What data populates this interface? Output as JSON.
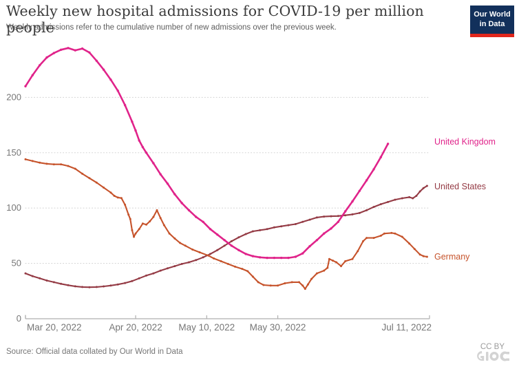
{
  "logo": {
    "line1": "Our World",
    "line2": "in Data",
    "bg_color": "#12305b",
    "accent_color": "#e0261c"
  },
  "footer": {
    "source": "Source: Official data collated by Our World in Data",
    "license": "CC BY"
  },
  "chart_data": {
    "type": "line",
    "title": "Weekly new hospital admissions for COVID-19 per million people",
    "subtitle": "Weekly admissions refer to the cumulative number of new admissions over the previous week.",
    "x_unit": "date (days since Mar 20, 2022)",
    "xlim_days": [
      0,
      113
    ],
    "ylim": [
      0,
      250
    ],
    "grid": "dotted-horizontal",
    "legend_position": "right-of-line-end",
    "x_ticks": [
      {
        "day": 0,
        "label": "Mar 20, 2022"
      },
      {
        "day": 31,
        "label": "Apr 20, 2022"
      },
      {
        "day": 51,
        "label": "May 10, 2022"
      },
      {
        "day": 71,
        "label": "May 30, 2022"
      },
      {
        "day": 113,
        "label": "Jul 11, 2022"
      }
    ],
    "y_ticks": [
      0,
      50,
      100,
      150,
      200
    ],
    "series": [
      {
        "name": "United States",
        "slug": "united-states",
        "color": "#943a44",
        "width": 2.1,
        "dot": 1.5,
        "label_dy": 3,
        "points": [
          [
            0,
            41
          ],
          [
            2,
            38.5
          ],
          [
            4,
            36.5
          ],
          [
            6,
            34.5
          ],
          [
            8,
            33
          ],
          [
            10,
            31.5
          ],
          [
            12,
            30.3
          ],
          [
            14,
            29.3
          ],
          [
            16,
            28.7
          ],
          [
            18,
            28.5
          ],
          [
            20,
            28.7
          ],
          [
            22,
            29.2
          ],
          [
            24,
            30
          ],
          [
            26,
            31
          ],
          [
            28,
            32.3
          ],
          [
            30,
            34
          ],
          [
            32,
            36.5
          ],
          [
            34,
            39
          ],
          [
            36,
            41
          ],
          [
            38,
            43.5
          ],
          [
            40,
            45.5
          ],
          [
            42,
            47.5
          ],
          [
            44,
            49.5
          ],
          [
            46,
            51
          ],
          [
            48,
            53
          ],
          [
            50,
            55.5
          ],
          [
            52,
            58.5
          ],
          [
            54,
            62
          ],
          [
            56,
            66
          ],
          [
            58,
            70
          ],
          [
            60,
            73.5
          ],
          [
            62,
            76.5
          ],
          [
            64,
            79
          ],
          [
            66,
            80
          ],
          [
            68,
            81
          ],
          [
            70,
            82.5
          ],
          [
            72,
            83.5
          ],
          [
            74,
            84.5
          ],
          [
            76,
            85.5
          ],
          [
            78,
            87.5
          ],
          [
            80,
            89.5
          ],
          [
            82,
            91.5
          ],
          [
            84,
            92.3
          ],
          [
            86,
            92.6
          ],
          [
            88,
            92.8
          ],
          [
            90,
            93.5
          ],
          [
            92,
            94.3
          ],
          [
            94,
            95.5
          ],
          [
            96,
            98
          ],
          [
            98,
            101
          ],
          [
            100,
            103.5
          ],
          [
            102,
            105.5
          ],
          [
            104,
            107.5
          ],
          [
            106,
            108.8
          ],
          [
            108,
            109.8
          ],
          [
            109,
            108.8
          ],
          [
            110,
            111
          ],
          [
            111,
            115
          ],
          [
            112,
            118
          ],
          [
            113,
            120
          ]
        ]
      },
      {
        "name": "Germany",
        "slug": "germany",
        "color": "#c6532b",
        "width": 2.1,
        "dot": 1.5,
        "label_dy": 2,
        "points": [
          [
            0,
            144
          ],
          [
            2,
            142.5
          ],
          [
            4,
            141
          ],
          [
            6,
            140
          ],
          [
            8,
            139.5
          ],
          [
            10,
            139.5
          ],
          [
            12,
            138
          ],
          [
            14,
            135.5
          ],
          [
            16,
            131
          ],
          [
            18,
            127
          ],
          [
            20,
            123
          ],
          [
            22,
            118.5
          ],
          [
            24,
            114
          ],
          [
            25,
            111
          ],
          [
            26,
            109.5
          ],
          [
            27,
            109
          ],
          [
            28,
            103
          ],
          [
            29,
            94
          ],
          [
            29.5,
            90
          ],
          [
            30,
            80
          ],
          [
            30.5,
            74
          ],
          [
            31,
            77
          ],
          [
            32,
            81
          ],
          [
            33,
            86
          ],
          [
            34,
            85
          ],
          [
            35,
            88
          ],
          [
            36,
            92
          ],
          [
            37,
            98
          ],
          [
            38,
            91
          ],
          [
            39,
            84.5
          ],
          [
            40.5,
            77
          ],
          [
            42,
            72.5
          ],
          [
            43.5,
            68.5
          ],
          [
            45,
            66
          ],
          [
            47,
            62.5
          ],
          [
            49,
            60
          ],
          [
            51.5,
            57
          ],
          [
            53,
            54.5
          ],
          [
            55,
            52
          ],
          [
            57,
            49.5
          ],
          [
            59,
            47
          ],
          [
            61,
            45
          ],
          [
            62.5,
            43
          ],
          [
            64,
            38
          ],
          [
            65.5,
            33
          ],
          [
            67,
            30.5
          ],
          [
            69,
            30
          ],
          [
            71,
            30
          ],
          [
            73,
            32
          ],
          [
            75,
            33
          ],
          [
            77,
            33
          ],
          [
            78,
            30
          ],
          [
            78.7,
            27
          ],
          [
            79.5,
            31
          ],
          [
            80.5,
            36
          ],
          [
            82,
            41
          ],
          [
            84,
            43.5
          ],
          [
            85,
            46
          ],
          [
            85.5,
            54
          ],
          [
            86.5,
            52.5
          ],
          [
            87.5,
            51
          ],
          [
            88.8,
            47.5
          ],
          [
            90,
            52
          ],
          [
            92,
            54
          ],
          [
            93.5,
            61
          ],
          [
            95,
            70
          ],
          [
            96,
            73
          ],
          [
            98,
            73
          ],
          [
            100,
            75
          ],
          [
            101,
            77
          ],
          [
            103,
            77.5
          ],
          [
            104,
            77
          ],
          [
            106,
            74
          ],
          [
            108,
            68
          ],
          [
            109.5,
            63
          ],
          [
            111,
            58
          ],
          [
            112,
            56.5
          ],
          [
            113,
            56
          ]
        ]
      },
      {
        "name": "United Kingdom",
        "slug": "united-kingdom",
        "color": "#e0238a",
        "width": 2.6,
        "dot": 1.7,
        "label_dy": -1,
        "points": [
          [
            0,
            210
          ],
          [
            2,
            220
          ],
          [
            4,
            229
          ],
          [
            6,
            236
          ],
          [
            8,
            240
          ],
          [
            10,
            243
          ],
          [
            12,
            244.5
          ],
          [
            14,
            242.5
          ],
          [
            16,
            244
          ],
          [
            18,
            240.5
          ],
          [
            20,
            233
          ],
          [
            22,
            225
          ],
          [
            24,
            216
          ],
          [
            26,
            206
          ],
          [
            28,
            193
          ],
          [
            30,
            178
          ],
          [
            31,
            170
          ],
          [
            32,
            161
          ],
          [
            33,
            155
          ],
          [
            34,
            150
          ],
          [
            36,
            140.5
          ],
          [
            38,
            130.5
          ],
          [
            40,
            122
          ],
          [
            42,
            112.5
          ],
          [
            44,
            104.5
          ],
          [
            46,
            98
          ],
          [
            48,
            92
          ],
          [
            50,
            87.5
          ],
          [
            52,
            81
          ],
          [
            54,
            76
          ],
          [
            56,
            71
          ],
          [
            58,
            66
          ],
          [
            60,
            62
          ],
          [
            62,
            58.5
          ],
          [
            64,
            56.5
          ],
          [
            66,
            55.5
          ],
          [
            68,
            55
          ],
          [
            70,
            55
          ],
          [
            72,
            55
          ],
          [
            74,
            55
          ],
          [
            76,
            56
          ],
          [
            78,
            59
          ],
          [
            80,
            65.5
          ],
          [
            82,
            71
          ],
          [
            84,
            77
          ],
          [
            86,
            81.5
          ],
          [
            88,
            87.5
          ],
          [
            90,
            97
          ],
          [
            92,
            106
          ],
          [
            94,
            115.5
          ],
          [
            96,
            125
          ],
          [
            98,
            135
          ],
          [
            100,
            146
          ],
          [
            102,
            158
          ]
        ]
      }
    ]
  }
}
